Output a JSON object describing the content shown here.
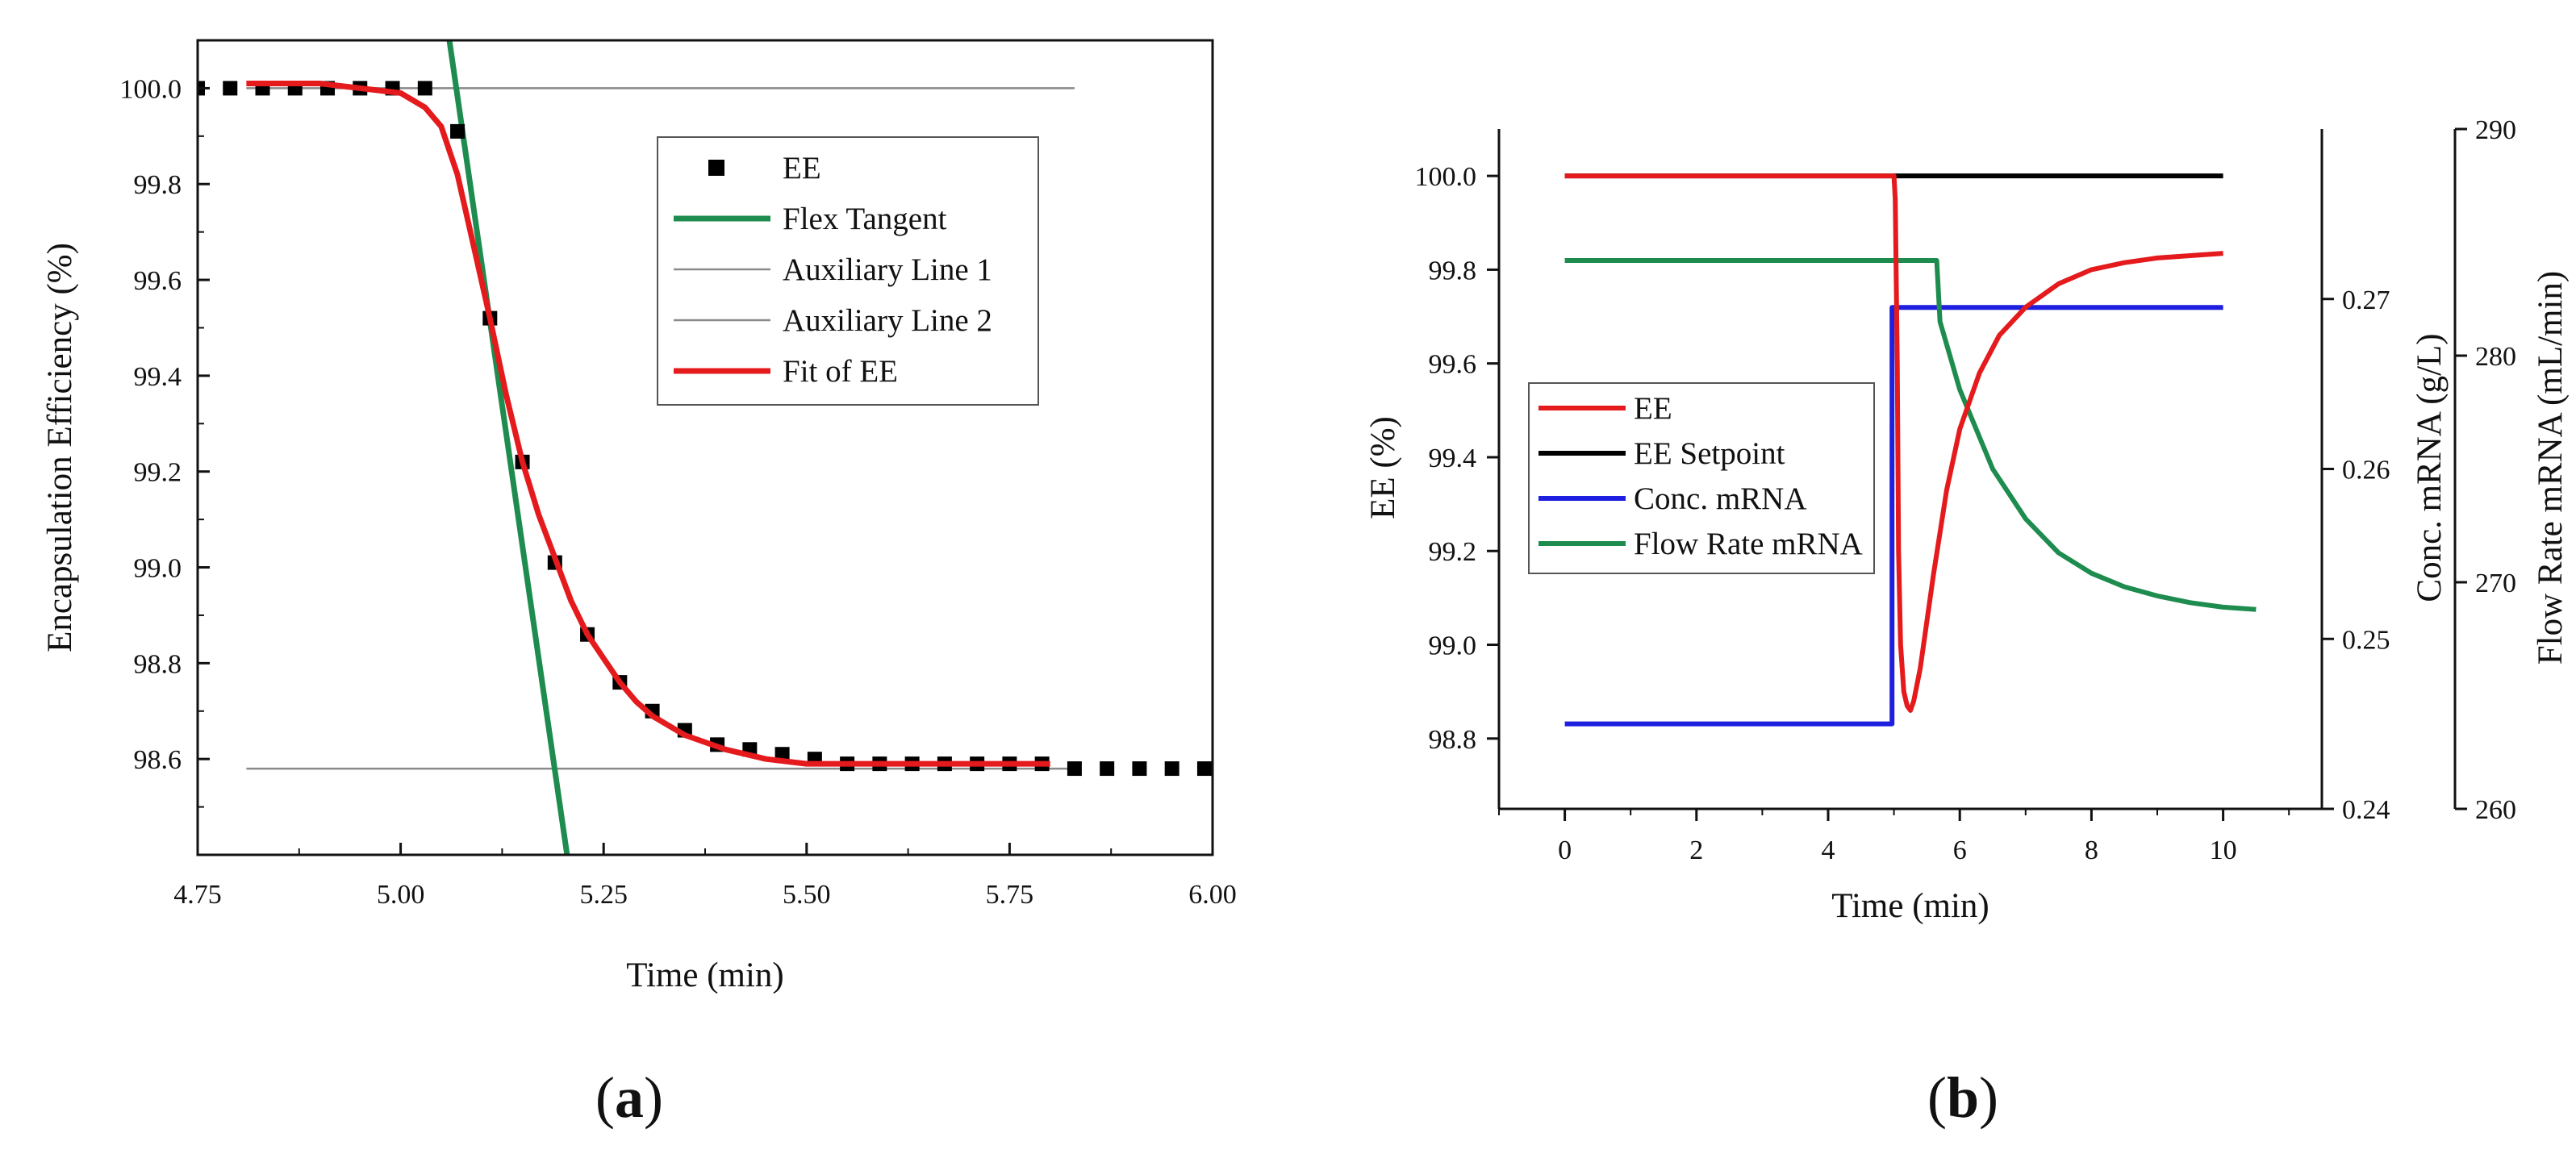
{
  "chart_data": [
    {
      "id": "a",
      "type": "scatter",
      "panel_label": {
        "open": "(",
        "letter": "a",
        "close": ")"
      },
      "xlabel": "Time (min)",
      "ylabel": "Encapsulation Efficiency (%)",
      "xlim": [
        4.75,
        6.0
      ],
      "ylim": [
        98.4,
        100.1
      ],
      "xticks": [
        "4.75",
        "5.00",
        "5.25",
        "5.50",
        "5.75",
        "6.00"
      ],
      "yticks": [
        "98.6",
        "98.8",
        "99.0",
        "99.2",
        "99.4",
        "99.6",
        "99.8",
        "100.0"
      ],
      "legend_position": "top-right",
      "series": [
        {
          "name": "EE",
          "kind": "markers",
          "color": "#000000",
          "x": [
            4.75,
            4.79,
            4.83,
            4.87,
            4.91,
            4.95,
            4.99,
            5.03,
            5.07,
            5.11,
            5.15,
            5.19,
            5.23,
            5.27,
            5.31,
            5.35,
            5.39,
            5.43,
            5.47,
            5.51,
            5.55,
            5.59,
            5.63,
            5.67,
            5.71,
            5.75,
            5.79,
            5.83,
            5.87,
            5.91,
            5.95,
            5.99
          ],
          "y": [
            100.0,
            100.0,
            100.0,
            100.0,
            100.0,
            100.0,
            100.0,
            100.0,
            99.91,
            99.52,
            99.22,
            99.01,
            98.86,
            98.76,
            98.7,
            98.66,
            98.63,
            98.62,
            98.61,
            98.6,
            98.59,
            98.59,
            98.59,
            98.59,
            98.59,
            98.59,
            98.59,
            98.58,
            98.58,
            98.58,
            98.58,
            98.58
          ]
        },
        {
          "name": "Flex Tangent",
          "kind": "line",
          "color": "#1e8c4e",
          "x": [
            5.06,
            5.205
          ],
          "y": [
            100.1,
            98.4
          ]
        },
        {
          "name": "Auxiliary Line 1",
          "kind": "line",
          "color": "#8a8a8a",
          "x": [
            4.81,
            5.83
          ],
          "y": [
            100.0,
            100.0
          ]
        },
        {
          "name": "Auxiliary Line 2",
          "kind": "line",
          "color": "#8a8a8a",
          "x": [
            4.81,
            5.83
          ],
          "y": [
            98.58,
            98.58
          ]
        },
        {
          "name": "Fit of EE",
          "kind": "line",
          "color": "#e41a1c",
          "x": [
            4.81,
            4.9,
            4.95,
            5.0,
            5.03,
            5.05,
            5.07,
            5.09,
            5.11,
            5.13,
            5.15,
            5.17,
            5.19,
            5.21,
            5.23,
            5.25,
            5.27,
            5.29,
            5.31,
            5.35,
            5.4,
            5.45,
            5.5,
            5.6,
            5.7,
            5.8
          ],
          "y": [
            100.01,
            100.01,
            100.0,
            99.99,
            99.96,
            99.92,
            99.82,
            99.67,
            99.52,
            99.36,
            99.22,
            99.11,
            99.02,
            98.93,
            98.86,
            98.81,
            98.76,
            98.72,
            98.69,
            98.65,
            98.62,
            98.6,
            98.59,
            98.59,
            98.59,
            98.59
          ]
        }
      ]
    },
    {
      "id": "b",
      "type": "line",
      "panel_label": {
        "open": "(",
        "letter": "b",
        "close": ")"
      },
      "xlabel": "Time (min)",
      "ylabel": "EE (%)",
      "y2label": "Conc. mRNA (g/L)",
      "y3label": "Flow Rate mRNA (mL/min)",
      "xlim": [
        -1,
        11.5
      ],
      "ylim": [
        98.65,
        100.1
      ],
      "y2lim": [
        0.24,
        0.28
      ],
      "y3lim": [
        260,
        290
      ],
      "xticks": [
        "0",
        "2",
        "4",
        "6",
        "8",
        "10"
      ],
      "yticks": [
        "98.8",
        "99.0",
        "99.2",
        "99.4",
        "99.6",
        "99.8",
        "100.0"
      ],
      "y2ticks": [
        "0.24",
        "0.25",
        "0.26",
        "0.27"
      ],
      "y3ticks": [
        "260",
        "270",
        "280",
        "290"
      ],
      "legend_position": "center-left",
      "series": [
        {
          "name": "EE",
          "axis": "y",
          "color": "#e41a1c",
          "x": [
            0,
            4.95,
            5.0,
            5.02,
            5.05,
            5.07,
            5.1,
            5.15,
            5.2,
            5.25,
            5.3,
            5.4,
            5.5,
            5.6,
            5.8,
            6.0,
            6.3,
            6.6,
            7.0,
            7.5,
            8.0,
            8.5,
            9.0,
            9.5,
            10.0
          ],
          "y": [
            100.0,
            100.0,
            100.0,
            99.95,
            99.6,
            99.2,
            99.0,
            98.9,
            98.87,
            98.86,
            98.88,
            98.95,
            99.05,
            99.15,
            99.33,
            99.46,
            99.58,
            99.66,
            99.72,
            99.77,
            99.8,
            99.815,
            99.825,
            99.83,
            99.835
          ]
        },
        {
          "name": "EE Setpoint",
          "axis": "y",
          "color": "#000000",
          "x": [
            0,
            10
          ],
          "y": [
            100.0,
            100.0
          ]
        },
        {
          "name": "Conc. mRNA",
          "axis": "y2",
          "color": "#1f1fe0",
          "x": [
            0,
            4.97,
            4.97,
            10
          ],
          "y": [
            0.245,
            0.245,
            0.2695,
            0.2695
          ]
        },
        {
          "name": "Flow Rate mRNA",
          "axis": "y3",
          "color": "#1e8c4e",
          "x": [
            0,
            5.65,
            5.7,
            6.0,
            6.5,
            7.0,
            7.5,
            8.0,
            8.5,
            9.0,
            9.5,
            10.0,
            10.5
          ],
          "y": [
            284.2,
            284.2,
            281.5,
            278.5,
            275.0,
            272.8,
            271.3,
            270.4,
            269.8,
            269.4,
            269.1,
            268.9,
            268.8
          ]
        }
      ]
    }
  ]
}
